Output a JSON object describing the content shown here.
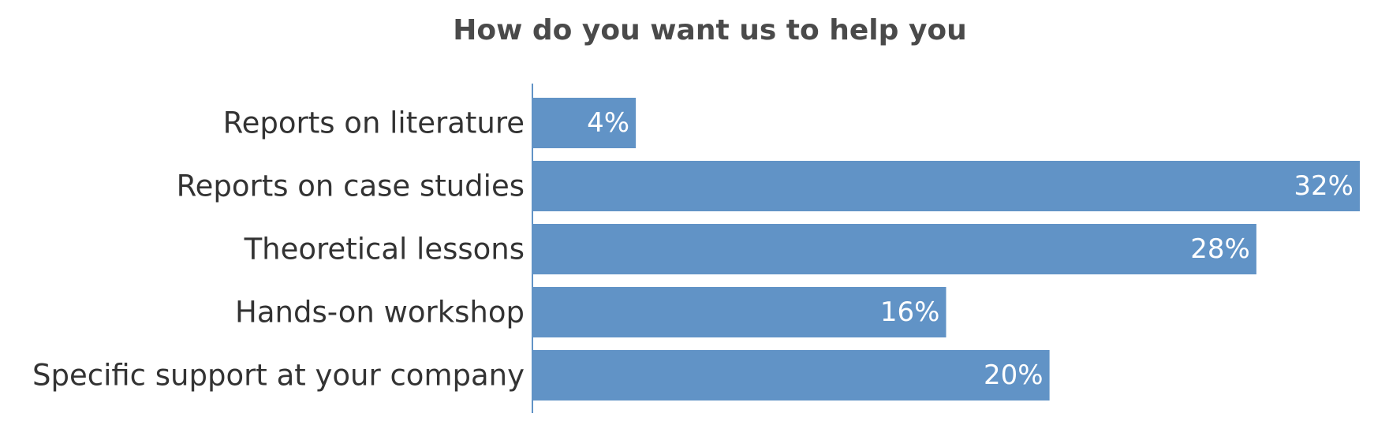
{
  "chart_data": {
    "type": "bar",
    "orientation": "horizontal",
    "title": "How do you want us to help you",
    "categories": [
      "Reports on literature",
      "Reports on case studies",
      "Theoretical lessons",
      "Hands-on workshop",
      "Specific support at your company"
    ],
    "values": [
      4,
      32,
      28,
      16,
      20
    ],
    "value_labels": [
      "4%",
      "32%",
      "28%",
      "16%",
      "20%"
    ],
    "unit": "%",
    "xlabel": "",
    "ylabel": "",
    "xlim": [
      0,
      32
    ],
    "grid": false,
    "legend": "none",
    "colors": {
      "bar": "#6193c6",
      "axis": "#6193c6"
    }
  }
}
